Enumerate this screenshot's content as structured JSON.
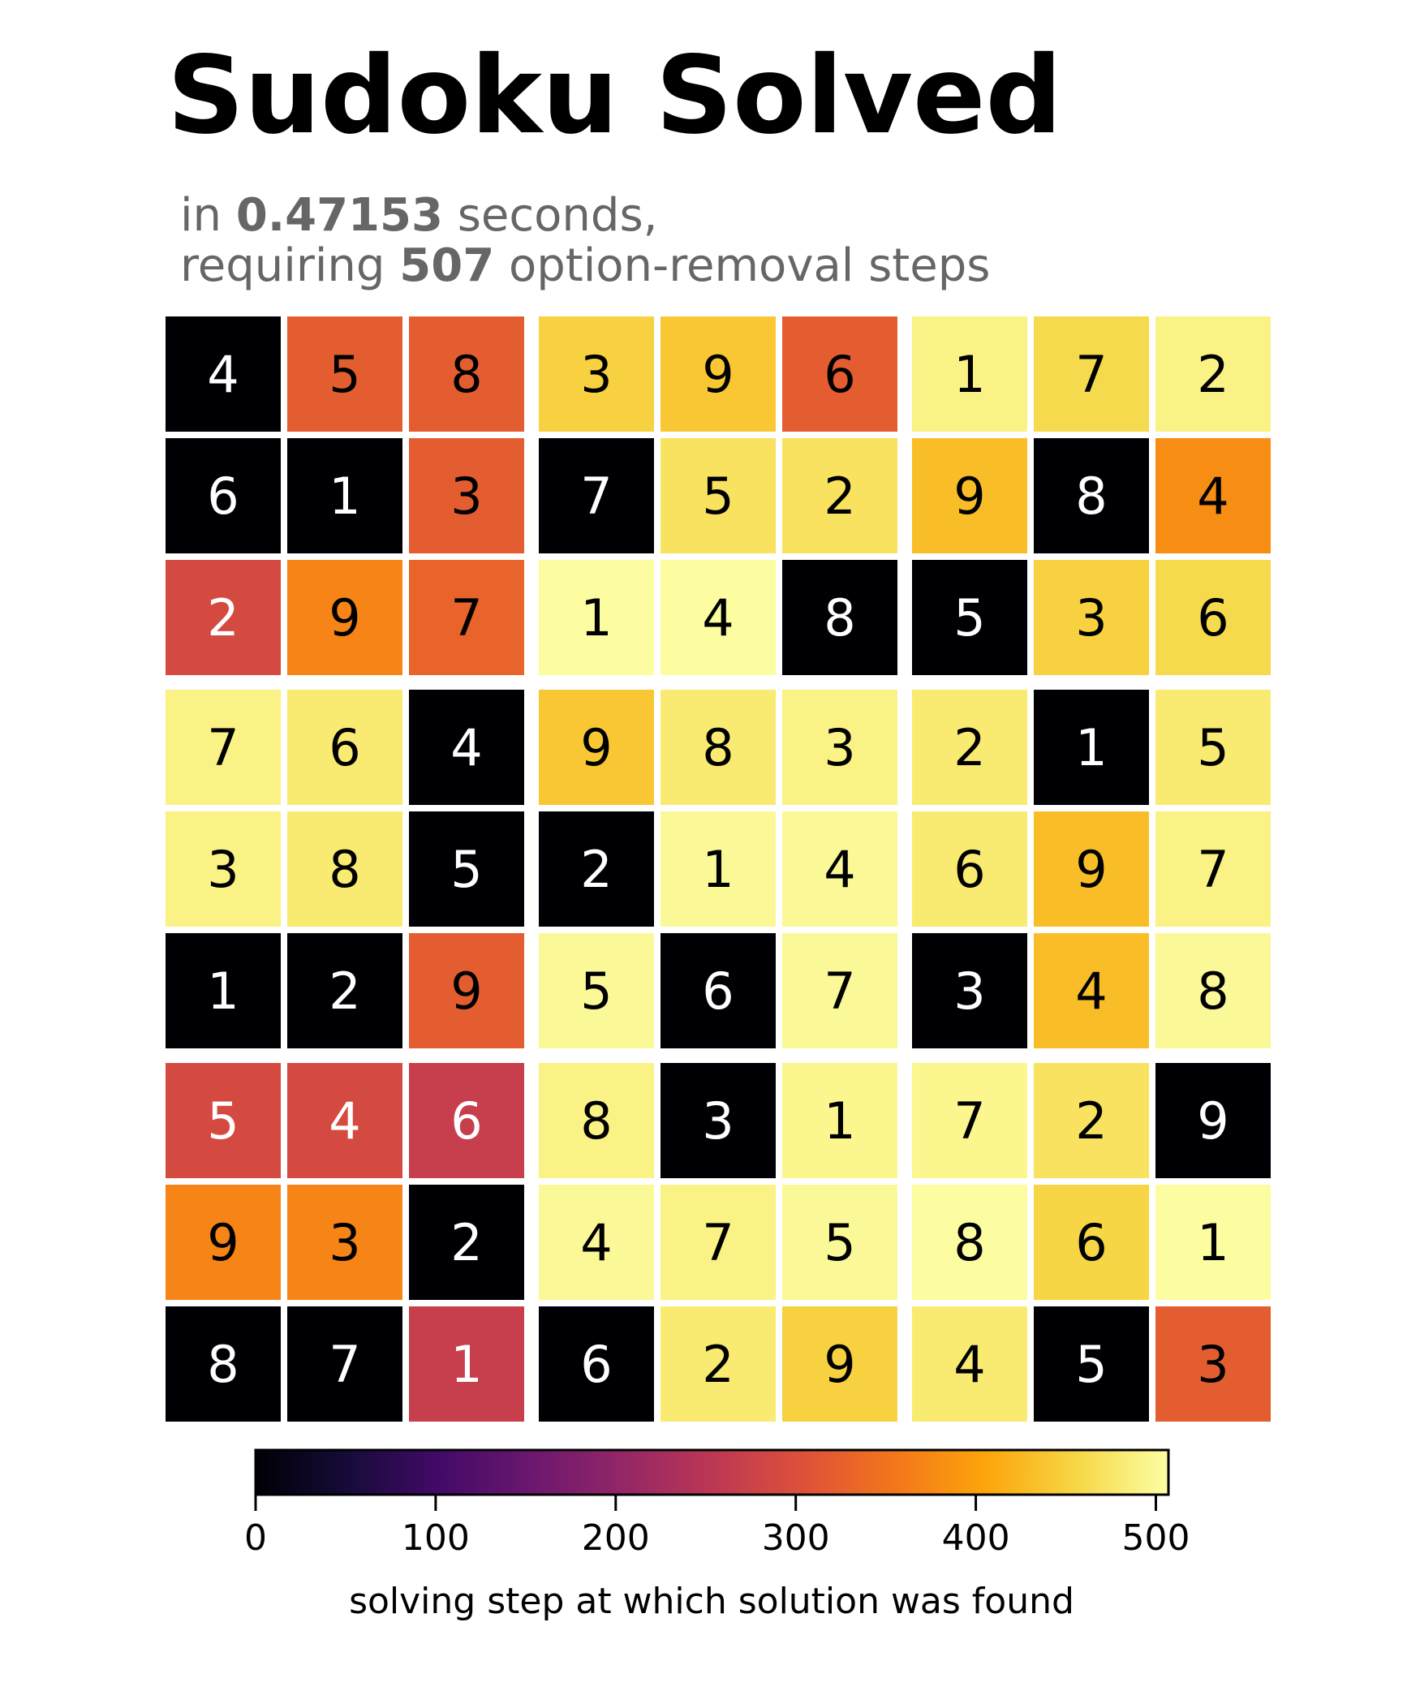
{
  "chart_data": {
    "type": "heatmap",
    "title": "Sudoku Solved",
    "subtitle": {
      "line1_prefix": "in ",
      "seconds": "0.47153",
      "line1_suffix": " seconds,",
      "line2_prefix": "requiring ",
      "steps": "507",
      "line2_suffix": " option-removal steps"
    },
    "colorscale": "inferno",
    "colorbar": {
      "label": "solving step at which solution was found",
      "min": 0,
      "max": 507,
      "ticks": [
        0,
        100,
        200,
        300,
        400,
        500
      ]
    },
    "digits": [
      [
        4,
        5,
        8,
        3,
        9,
        6,
        1,
        7,
        2
      ],
      [
        6,
        1,
        3,
        7,
        5,
        2,
        9,
        8,
        4
      ],
      [
        2,
        9,
        7,
        1,
        4,
        8,
        5,
        3,
        6
      ],
      [
        7,
        6,
        4,
        9,
        8,
        3,
        2,
        1,
        5
      ],
      [
        3,
        8,
        5,
        2,
        1,
        4,
        6,
        9,
        7
      ],
      [
        1,
        2,
        9,
        5,
        6,
        7,
        3,
        4,
        8
      ],
      [
        5,
        4,
        6,
        8,
        3,
        1,
        7,
        2,
        9
      ],
      [
        9,
        3,
        2,
        4,
        7,
        5,
        8,
        6,
        1
      ],
      [
        8,
        7,
        1,
        6,
        2,
        9,
        4,
        5,
        3
      ]
    ],
    "steps": [
      [
        0,
        320,
        320,
        450,
        440,
        320,
        490,
        460,
        490
      ],
      [
        0,
        0,
        320,
        0,
        470,
        470,
        430,
        0,
        380
      ],
      [
        290,
        370,
        330,
        505,
        505,
        0,
        0,
        450,
        460
      ],
      [
        490,
        480,
        0,
        440,
        480,
        490,
        480,
        0,
        480
      ],
      [
        490,
        480,
        0,
        0,
        500,
        500,
        480,
        430,
        490
      ],
      [
        0,
        0,
        320,
        500,
        0,
        500,
        0,
        430,
        500
      ],
      [
        290,
        290,
        270,
        490,
        0,
        495,
        495,
        470,
        0
      ],
      [
        370,
        370,
        0,
        500,
        490,
        500,
        505,
        455,
        505
      ],
      [
        0,
        0,
        270,
        0,
        480,
        450,
        480,
        0,
        320
      ]
    ]
  }
}
